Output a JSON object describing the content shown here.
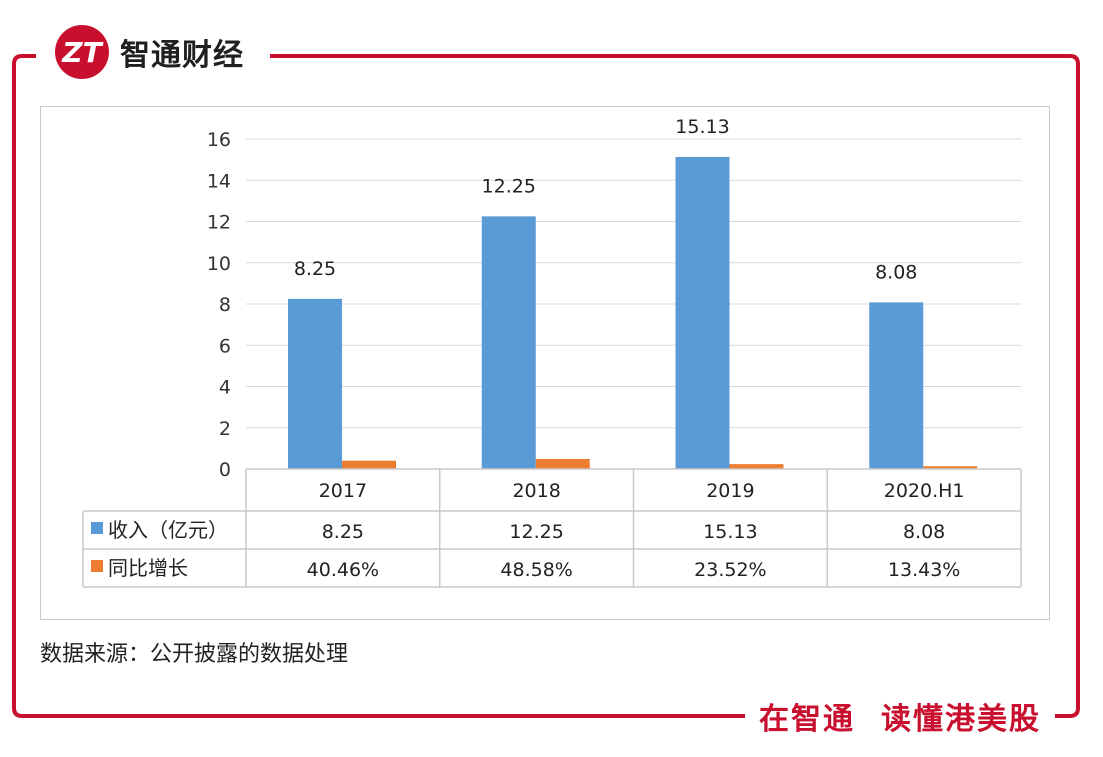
{
  "brand": {
    "name": "智通财经",
    "logo_letters": "ZT"
  },
  "source_note": "数据来源：公开披露的数据处理",
  "slogan": {
    "part1": "在智通",
    "part2": "读懂港美股"
  },
  "colors": {
    "frame": "#c8102e",
    "revenue": "#5b9bd5",
    "growth": "#ed7d31",
    "grid": "#d9d9d9"
  },
  "chart_data": {
    "type": "bar",
    "categories": [
      "2017",
      "2018",
      "2019",
      "2020.H1"
    ],
    "series": [
      {
        "name": "收入（亿元）",
        "values": [
          8.25,
          12.25,
          15.13,
          8.08
        ],
        "labels": [
          "8.25",
          "12.25",
          "15.13",
          "8.08"
        ],
        "color": "#5b9bd5"
      },
      {
        "name": "同比增长",
        "values": [
          0.4046,
          0.4858,
          0.2352,
          0.1343
        ],
        "labels": [
          "40.46%",
          "48.58%",
          "23.52%",
          "13.43%"
        ],
        "color": "#ed7d31"
      }
    ],
    "ylim": [
      0,
      16
    ],
    "yticks": [
      "0",
      "2",
      "4",
      "6",
      "8",
      "10",
      "12",
      "14",
      "16"
    ],
    "grid": true,
    "data_table": true
  }
}
